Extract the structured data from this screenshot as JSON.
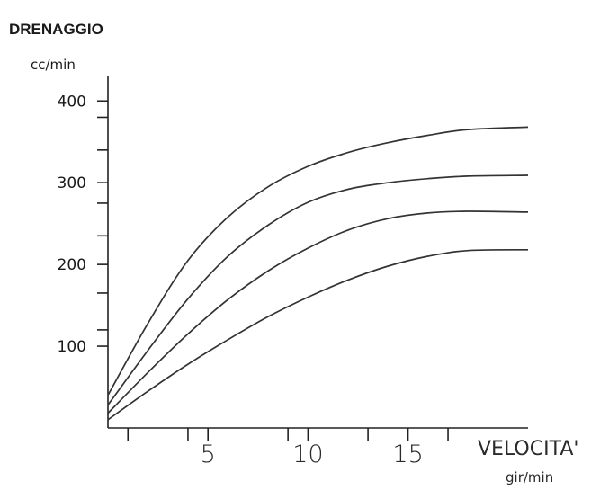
{
  "chart_data": {
    "type": "line",
    "title": "DRENAGGIO",
    "ylabel": "cc/min",
    "xlabel": "VELOCITA'",
    "xunit": "gir/min",
    "xlim": [
      0,
      21
    ],
    "ylim": [
      0,
      430
    ],
    "xticks": [
      5,
      10,
      15
    ],
    "yticks": [
      100,
      200,
      300,
      400
    ],
    "yminor": [
      120,
      165,
      235,
      275,
      300,
      340,
      380,
      440
    ],
    "xminor": [
      1,
      4,
      9,
      13,
      17
    ],
    "grid": false,
    "series": [
      {
        "x": [
          0,
          2,
          4,
          6,
          8,
          10,
          12,
          14,
          16,
          18,
          21
        ],
        "y": [
          40,
          128,
          205,
          258,
          295,
          320,
          337,
          349,
          358,
          365,
          368
        ]
      },
      {
        "x": [
          0,
          2,
          4,
          6,
          8,
          10,
          12,
          14,
          16,
          18,
          21
        ],
        "y": [
          28,
          95,
          158,
          210,
          248,
          276,
          292,
          300,
          305,
          308,
          309
        ]
      },
      {
        "x": [
          0,
          2,
          4,
          6,
          8,
          10,
          12,
          14,
          16,
          18,
          21
        ],
        "y": [
          18,
          68,
          115,
          157,
          192,
          220,
          242,
          256,
          263,
          265,
          264
        ]
      },
      {
        "x": [
          0,
          2,
          4,
          6,
          8,
          10,
          12,
          14,
          16,
          18,
          21
        ],
        "y": [
          10,
          45,
          78,
          108,
          136,
          160,
          181,
          198,
          210,
          217,
          218
        ]
      }
    ]
  }
}
